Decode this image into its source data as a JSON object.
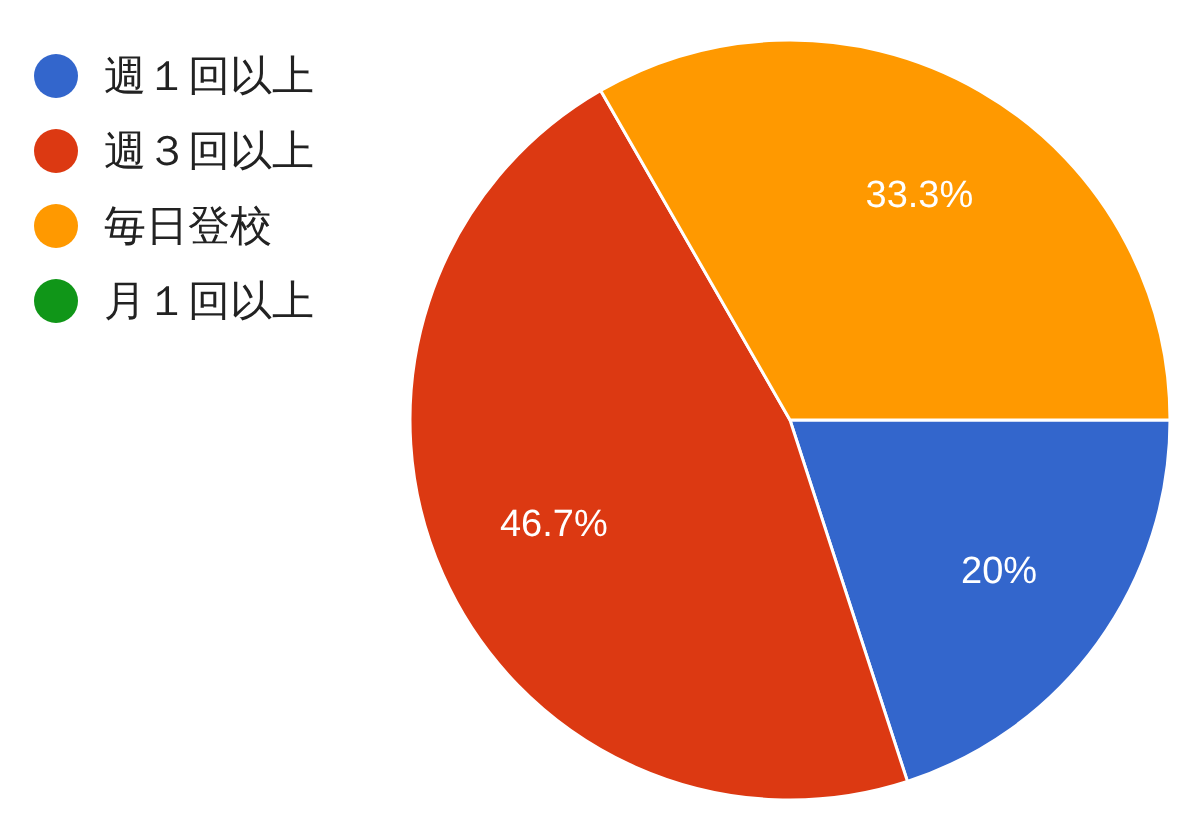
{
  "chart_data": {
    "type": "pie",
    "categories": [
      "週１回以上",
      "週３回以上",
      "毎日登校",
      "月１回以上"
    ],
    "values": [
      20,
      46.7,
      33.3,
      0
    ],
    "colors": [
      "#3366cc",
      "#dc3912",
      "#ff9900",
      "#109618"
    ],
    "value_labels": [
      "20%",
      "46.7%",
      "33.3%",
      null
    ],
    "legend": "left"
  }
}
